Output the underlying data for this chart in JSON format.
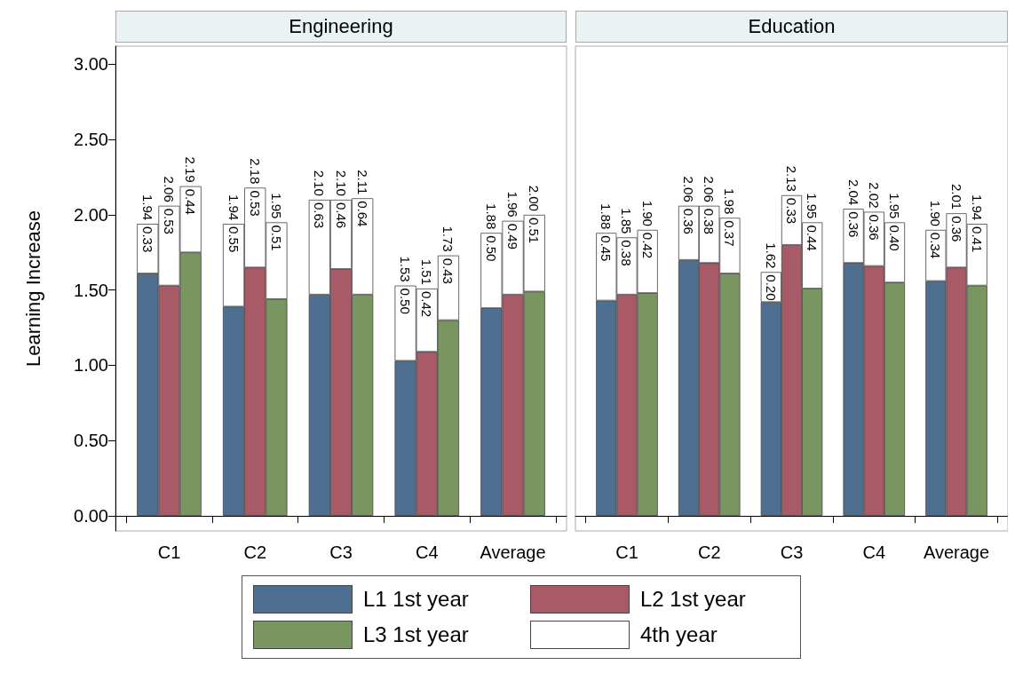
{
  "chart_data": [
    {
      "type": "bar",
      "title": "Engineering",
      "ylabel": "Learning Increase",
      "stacked": true,
      "categories": [
        null,
        null,
        "C1",
        null,
        null,
        null,
        "C2",
        null,
        null,
        null,
        "C3",
        null,
        null,
        null,
        "C4",
        null,
        null,
        null,
        "Average",
        null,
        null
      ],
      "ylim": [
        -0.1,
        3.12
      ],
      "yticks": [
        {
          "value": 0,
          "label": "0.00"
        },
        {
          "value": 0.5,
          "label": "0.50"
        },
        {
          "value": 1,
          "label": "1.00"
        },
        {
          "value": 1.5,
          "label": "1.50"
        },
        {
          "value": 2,
          "label": "2.00"
        },
        {
          "value": 2.5,
          "label": "2.50"
        },
        {
          "value": 3,
          "label": "3.00"
        }
      ],
      "grid": false,
      "legend": "bottom",
      "totals": [
        null,
        "1.94",
        "2.06",
        "2.19",
        null,
        "1.94",
        "2.18",
        "1.95",
        null,
        "2.10",
        "2.10",
        "2.11",
        null,
        "1.53",
        "1.51",
        "1.73",
        null,
        "1.88",
        "1.96",
        "2.00",
        null
      ],
      "series": [
        {
          "name": "L1 1st year",
          "color": "#4f6f90",
          "values": [
            null,
            1.61,
            null,
            null,
            null,
            1.39,
            null,
            null,
            null,
            1.47,
            null,
            null,
            null,
            1.03,
            null,
            null,
            null,
            1.38,
            null,
            null,
            null
          ]
        },
        {
          "name": "L2 1st year",
          "color": "#a85a66",
          "values": [
            null,
            null,
            1.53,
            null,
            null,
            null,
            1.65,
            null,
            null,
            null,
            1.64,
            null,
            null,
            null,
            1.09,
            null,
            null,
            null,
            1.47,
            null,
            null
          ]
        },
        {
          "name": "L3 1st year",
          "color": "#7a9660",
          "values": [
            null,
            null,
            null,
            1.75,
            null,
            null,
            null,
            1.44,
            null,
            null,
            null,
            1.47,
            null,
            null,
            null,
            1.3,
            null,
            null,
            null,
            1.49,
            null
          ]
        },
        {
          "name": "4th year",
          "color": "#ffffff",
          "values": [
            null,
            0.33,
            0.53,
            0.44,
            null,
            0.55,
            0.53,
            0.51,
            null,
            0.63,
            0.46,
            0.64,
            null,
            0.5,
            0.42,
            0.43,
            null,
            0.5,
            0.49,
            0.51,
            null
          ],
          "value_labels": [
            null,
            "0.33",
            "0.53",
            "0.44",
            null,
            "0.55",
            "0.53",
            "0.51",
            null,
            "0.63",
            "0.46",
            "0.64",
            null,
            "0.50",
            "0.42",
            "0.43",
            null,
            "0.50",
            "0.49",
            "0.51",
            null
          ]
        }
      ]
    },
    {
      "type": "bar",
      "title": "Education",
      "stacked": true,
      "categories": [
        null,
        null,
        "C1",
        null,
        null,
        null,
        "C2",
        null,
        null,
        null,
        "C3",
        null,
        null,
        null,
        "C4",
        null,
        null,
        null,
        "Average",
        null,
        null
      ],
      "ylim": [
        -0.1,
        3.12
      ],
      "grid": false,
      "tick_labels": "x",
      "totals": [
        null,
        "1.88",
        "1.85",
        "1.90",
        null,
        "2.06",
        "2.06",
        "1.98",
        null,
        "1.62",
        "2.13",
        "1.95",
        null,
        "2.04",
        "2.02",
        "1.95",
        null,
        "1.90",
        "2.01",
        "1.94",
        null
      ],
      "series": [
        {
          "color": "#4f6f90",
          "values": [
            null,
            1.43,
            null,
            null,
            null,
            1.7,
            null,
            null,
            null,
            1.42,
            null,
            null,
            null,
            1.68,
            null,
            null,
            null,
            1.56,
            null,
            null,
            null
          ]
        },
        {
          "color": "#a85a66",
          "values": [
            null,
            null,
            1.47,
            null,
            null,
            null,
            1.68,
            null,
            null,
            null,
            1.8,
            null,
            null,
            null,
            1.66,
            null,
            null,
            null,
            1.65,
            null,
            null
          ]
        },
        {
          "color": "#7a9660",
          "values": [
            null,
            null,
            null,
            1.48,
            null,
            null,
            null,
            1.61,
            null,
            null,
            null,
            1.51,
            null,
            null,
            null,
            1.55,
            null,
            null,
            null,
            1.53,
            null
          ]
        },
        {
          "color": "#ffffff",
          "values": [
            null,
            0.45,
            0.38,
            0.42,
            null,
            0.36,
            0.38,
            0.37,
            null,
            0.2,
            0.33,
            0.44,
            null,
            0.36,
            0.36,
            0.4,
            null,
            0.34,
            0.36,
            0.41,
            null
          ],
          "value_labels": [
            null,
            "0.45",
            "0.38",
            "0.42",
            null,
            "0.36",
            "0.38",
            "0.37",
            null,
            "0.20",
            "0.33",
            "0.44",
            null,
            "0.36",
            "0.36",
            "0.40",
            null,
            "0.34",
            "0.36",
            "0.41",
            null
          ]
        }
      ]
    }
  ]
}
